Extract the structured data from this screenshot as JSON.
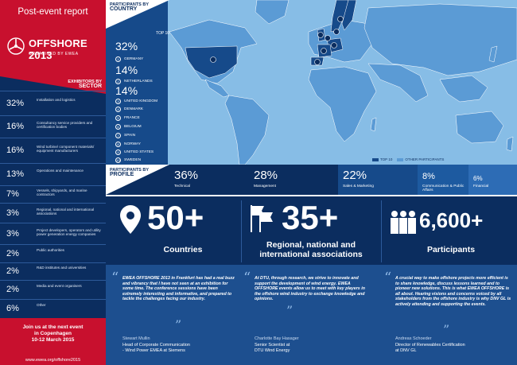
{
  "report_title": "Post-event report",
  "logo": {
    "word": "OFFSHORE 2013",
    "sub": "ORGANISED BY EWEA"
  },
  "sector": {
    "heading_small": "EXHIBITORS BY",
    "heading_big": "SECTOR",
    "items": [
      {
        "pct": "32%",
        "label": "Installation and logistics",
        "value": 32
      },
      {
        "pct": "16%",
        "label": "Consultancy service providers and certification bodies",
        "value": 16
      },
      {
        "pct": "16%",
        "label": "Wind turbine/ component materials/ equipment manufacturers",
        "value": 16
      },
      {
        "pct": "13%",
        "label": "Operations and maintenance",
        "value": 13
      },
      {
        "pct": "7%",
        "label": "Vessels, shipyards, and marine contractors",
        "value": 7
      },
      {
        "pct": "3%",
        "label": "Regional, national and international associations",
        "value": 3
      },
      {
        "pct": "3%",
        "label": "Project developers, operators and utility power generation energy companies",
        "value": 3
      },
      {
        "pct": "2%",
        "label": "Public authorities",
        "value": 2
      },
      {
        "pct": "2%",
        "label": "R&D institutes and universities",
        "value": 2
      },
      {
        "pct": "2%",
        "label": "Media and event organisers",
        "value": 2
      },
      {
        "pct": "6%",
        "label": "Other",
        "value": 6
      }
    ]
  },
  "next_event": {
    "line1": "Join us at the next event",
    "line2": "in Copenhagen",
    "line3": "10-12 March 2015"
  },
  "site_url": "www.ewea.org/offshore2015",
  "country": {
    "heading_small": "PARTICIPANTS BY",
    "heading_big": "COUNTRY",
    "top10": "TOP 10",
    "pct1": "32%",
    "c1": "GERMANY",
    "pct2": "14%",
    "c2": "NETHERLANDS",
    "pct3": "14%",
    "c3": "UNITED KINGDOM",
    "c4": "DENMARK",
    "c5": "FRANCE",
    "c6": "BELGIUM",
    "c7": "SPAIN",
    "c8": "NORWAY",
    "c9": "UNITED STATES",
    "c10": "SWEDEN",
    "legend_top10": "TOP 10",
    "legend_other": "OTHER PARTICIPANTS",
    "colors": {
      "top10": "#164a8a",
      "other": "#5b9bd5",
      "ocean": "#87bde6"
    }
  },
  "profile": {
    "heading_small": "PARTICIPANTS BY",
    "heading_big": "PROFILE",
    "items": [
      {
        "pct": "36%",
        "label": "Technical",
        "value": 36
      },
      {
        "pct": "28%",
        "label": "Management",
        "value": 28
      },
      {
        "pct": "22%",
        "label": "Sales & Marketing",
        "value": 22
      },
      {
        "pct": "8%",
        "label": "Communication & Public Affairs",
        "value": 8
      },
      {
        "pct": "6%",
        "label": "Financial",
        "value": 6
      }
    ]
  },
  "stats": {
    "countries": {
      "big": "50+",
      "cap": "Countries"
    },
    "associations": {
      "big": "35+",
      "cap1": "Regional, national and",
      "cap2": "international associations"
    },
    "participants": {
      "big": "6,600+",
      "cap": "Participants"
    }
  },
  "quotes": [
    {
      "text": "EWEA OFFSHORE 2013 in Frankfurt has had a real buzz and vibrancy that I have not seen at an exhibition for some time. The conference sessions have been extremely interesting and informative, and prepared to tackle the challenges facing our industry.",
      "name": "Stewart Mullin",
      "role1": "Head of Corporate Communication",
      "role2": "- Wind Power EMEA at Siemens"
    },
    {
      "text": "At DTU, through research, we strive to innovate and support the development of wind energy. EWEA OFFSHORE events allow us to meet with key players in the offshore wind industry to exchange knowledge and opinions.",
      "name": "Charlotte Bay Hasager",
      "role1": "Senior Scientist at",
      "role2": "DTU Wind Energy"
    },
    {
      "text": "A crucial way to make offshore projects more efficient is to share knowledge, discuss lessons learned and to pioneer new solutions. This is what EWEA OFFSHORE is all about. Hearing visions and concerns voiced by all stakeholders from the offshore industry is why DNV GL is actively attending and supporting the events.",
      "name": "Andreas Schoeder",
      "role1": "Director of Renewables Certification",
      "role2": "at DNV GL"
    }
  ]
}
